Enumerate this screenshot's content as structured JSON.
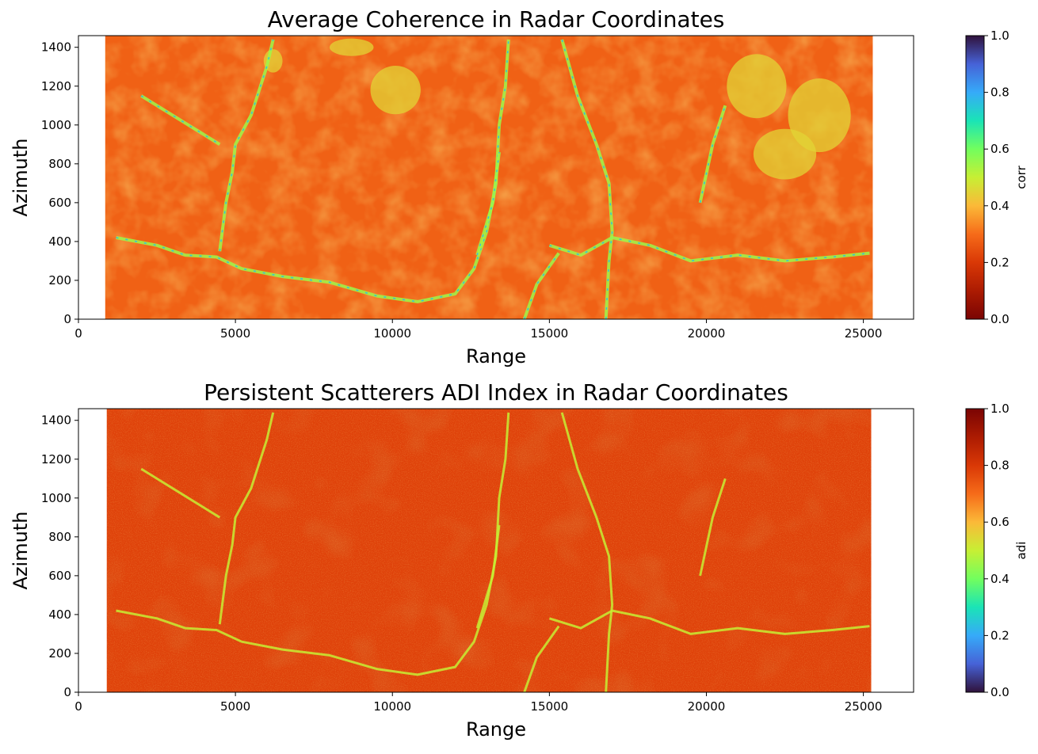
{
  "chart_data": [
    {
      "type": "heatmap",
      "title": "Average Coherence in Radar Coordinates",
      "xlabel": "Range",
      "ylabel": "Azimuth",
      "xlim": [
        0,
        26600
      ],
      "ylim": [
        0,
        1460
      ],
      "data_extent_x": [
        850,
        25300
      ],
      "xticks": [
        0,
        5000,
        10000,
        15000,
        20000,
        25000
      ],
      "yticks": [
        0,
        200,
        400,
        600,
        800,
        1000,
        1200,
        1400
      ],
      "colorbar": {
        "label": "corr",
        "range": [
          0,
          1
        ],
        "ticks": [
          "0.0",
          "0.2",
          "0.4",
          "0.6",
          "0.8",
          "1.0"
        ],
        "colormap": "turbo_r"
      },
      "dominant_value": 0.28,
      "features": "low coherence (orange) overall; higher coherence (green/blue) along rivers and channels, and green patches in upper right"
    },
    {
      "type": "heatmap",
      "title": "Persistent Scatterers ADI Index in Radar Coordinates",
      "xlabel": "Range",
      "ylabel": "Azimuth",
      "xlim": [
        0,
        26600
      ],
      "ylim": [
        0,
        1460
      ],
      "data_extent_x": [
        900,
        25250
      ],
      "xticks": [
        0,
        5000,
        10000,
        15000,
        20000,
        25000
      ],
      "yticks": [
        0,
        200,
        400,
        600,
        800,
        1000,
        1200,
        1400
      ],
      "colorbar": {
        "label": "adi",
        "range": [
          0,
          1
        ],
        "ticks": [
          "0.0",
          "0.2",
          "0.4",
          "0.6",
          "0.8",
          "1.0"
        ],
        "colormap": "turbo"
      },
      "dominant_value": 0.78,
      "features": "high ADI (orange/red) overall; lower ADI (yellow-green) along rivers and channels"
    }
  ]
}
